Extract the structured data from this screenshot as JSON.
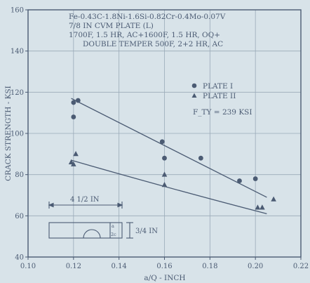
{
  "chart_data": {
    "type": "scatter",
    "annotation_lines": [
      "Fe-0.43C-1.8Ni-1.6Si-0.82Cr-0.4Mo-0.07V",
      "7/8 IN CVM PLATE (L)",
      "1700F, 1.5 HR, AC+1600F, 1.5 HR, OQ+",
      "DOUBLE TEMPER 500F, 2+2 HR, AC"
    ],
    "xlabel": "a/Q - INCH",
    "ylabel": "CRACK STRENGTH - KSI",
    "xlim": [
      0.1,
      0.22
    ],
    "ylim": [
      40,
      160
    ],
    "xticks": [
      0.1,
      0.12,
      0.14,
      0.16,
      0.18,
      0.2,
      0.22
    ],
    "xtick_labels": [
      "0.10",
      "0.12",
      "0.14",
      "0.16",
      "0.18",
      "0.20",
      "0.22"
    ],
    "yticks": [
      40,
      60,
      80,
      100,
      120,
      140,
      160
    ],
    "ytick_labels": [
      "40",
      "60",
      "80",
      "100",
      "120",
      "140",
      "160"
    ],
    "grid": true,
    "legend_position": "right",
    "legend_note": "F_TY = 239 KSI",
    "series": [
      {
        "name": "PLATE I",
        "marker": "circle",
        "points": [
          {
            "x": 0.12,
            "y": 115
          },
          {
            "x": 0.122,
            "y": 116
          },
          {
            "x": 0.12,
            "y": 108
          },
          {
            "x": 0.159,
            "y": 96
          },
          {
            "x": 0.16,
            "y": 88
          },
          {
            "x": 0.176,
            "y": 88
          },
          {
            "x": 0.193,
            "y": 77
          },
          {
            "x": 0.2,
            "y": 78
          }
        ],
        "fit_line": [
          {
            "x": 0.119,
            "y": 117
          },
          {
            "x": 0.205,
            "y": 69
          }
        ]
      },
      {
        "name": "PLATE II",
        "marker": "triangle",
        "points": [
          {
            "x": 0.119,
            "y": 86
          },
          {
            "x": 0.12,
            "y": 85
          },
          {
            "x": 0.121,
            "y": 90
          },
          {
            "x": 0.16,
            "y": 80
          },
          {
            "x": 0.16,
            "y": 75
          },
          {
            "x": 0.201,
            "y": 64
          },
          {
            "x": 0.203,
            "y": 64
          },
          {
            "x": 0.208,
            "y": 68
          }
        ],
        "fit_line": [
          {
            "x": 0.119,
            "y": 87
          },
          {
            "x": 0.163,
            "y": 73
          },
          {
            "x": 0.205,
            "y": 61
          }
        ]
      }
    ],
    "specimen_sketch": {
      "width_label": "4 1/2 IN",
      "thickness_label": "3/4 IN",
      "crack_depth_label": "a",
      "crack_length_label": "2c"
    }
  },
  "colors": {
    "background": "#d8e3e9",
    "ink": "#4b5b73",
    "grid": "#9aaab8"
  }
}
